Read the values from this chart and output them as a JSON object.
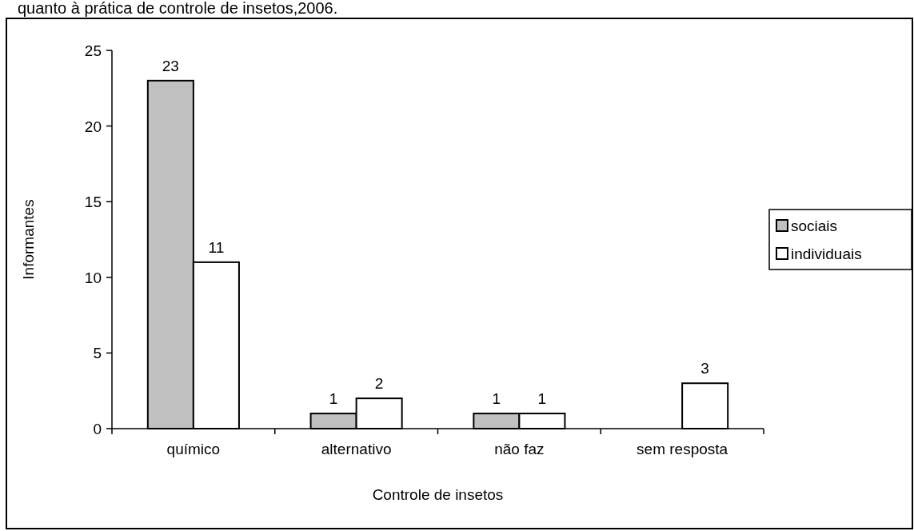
{
  "chart_data": {
    "type": "bar",
    "title": "quanto à prática de controle de insetos,2006.",
    "xlabel": "Controle de insetos",
    "ylabel": "Informantes",
    "categories": [
      "químico",
      "alternativo",
      "não faz",
      "sem resposta"
    ],
    "series": [
      {
        "name": "sociais",
        "color": "#c0c0c0",
        "values": [
          23,
          1,
          1,
          null
        ]
      },
      {
        "name": "individuais",
        "color": "#ffffff",
        "values": [
          11,
          2,
          1,
          3
        ]
      }
    ],
    "ylim": [
      0,
      25
    ],
    "yticks": [
      0,
      5,
      10,
      15,
      20,
      25
    ],
    "grid": false,
    "legend": "right",
    "data_labels": true
  }
}
